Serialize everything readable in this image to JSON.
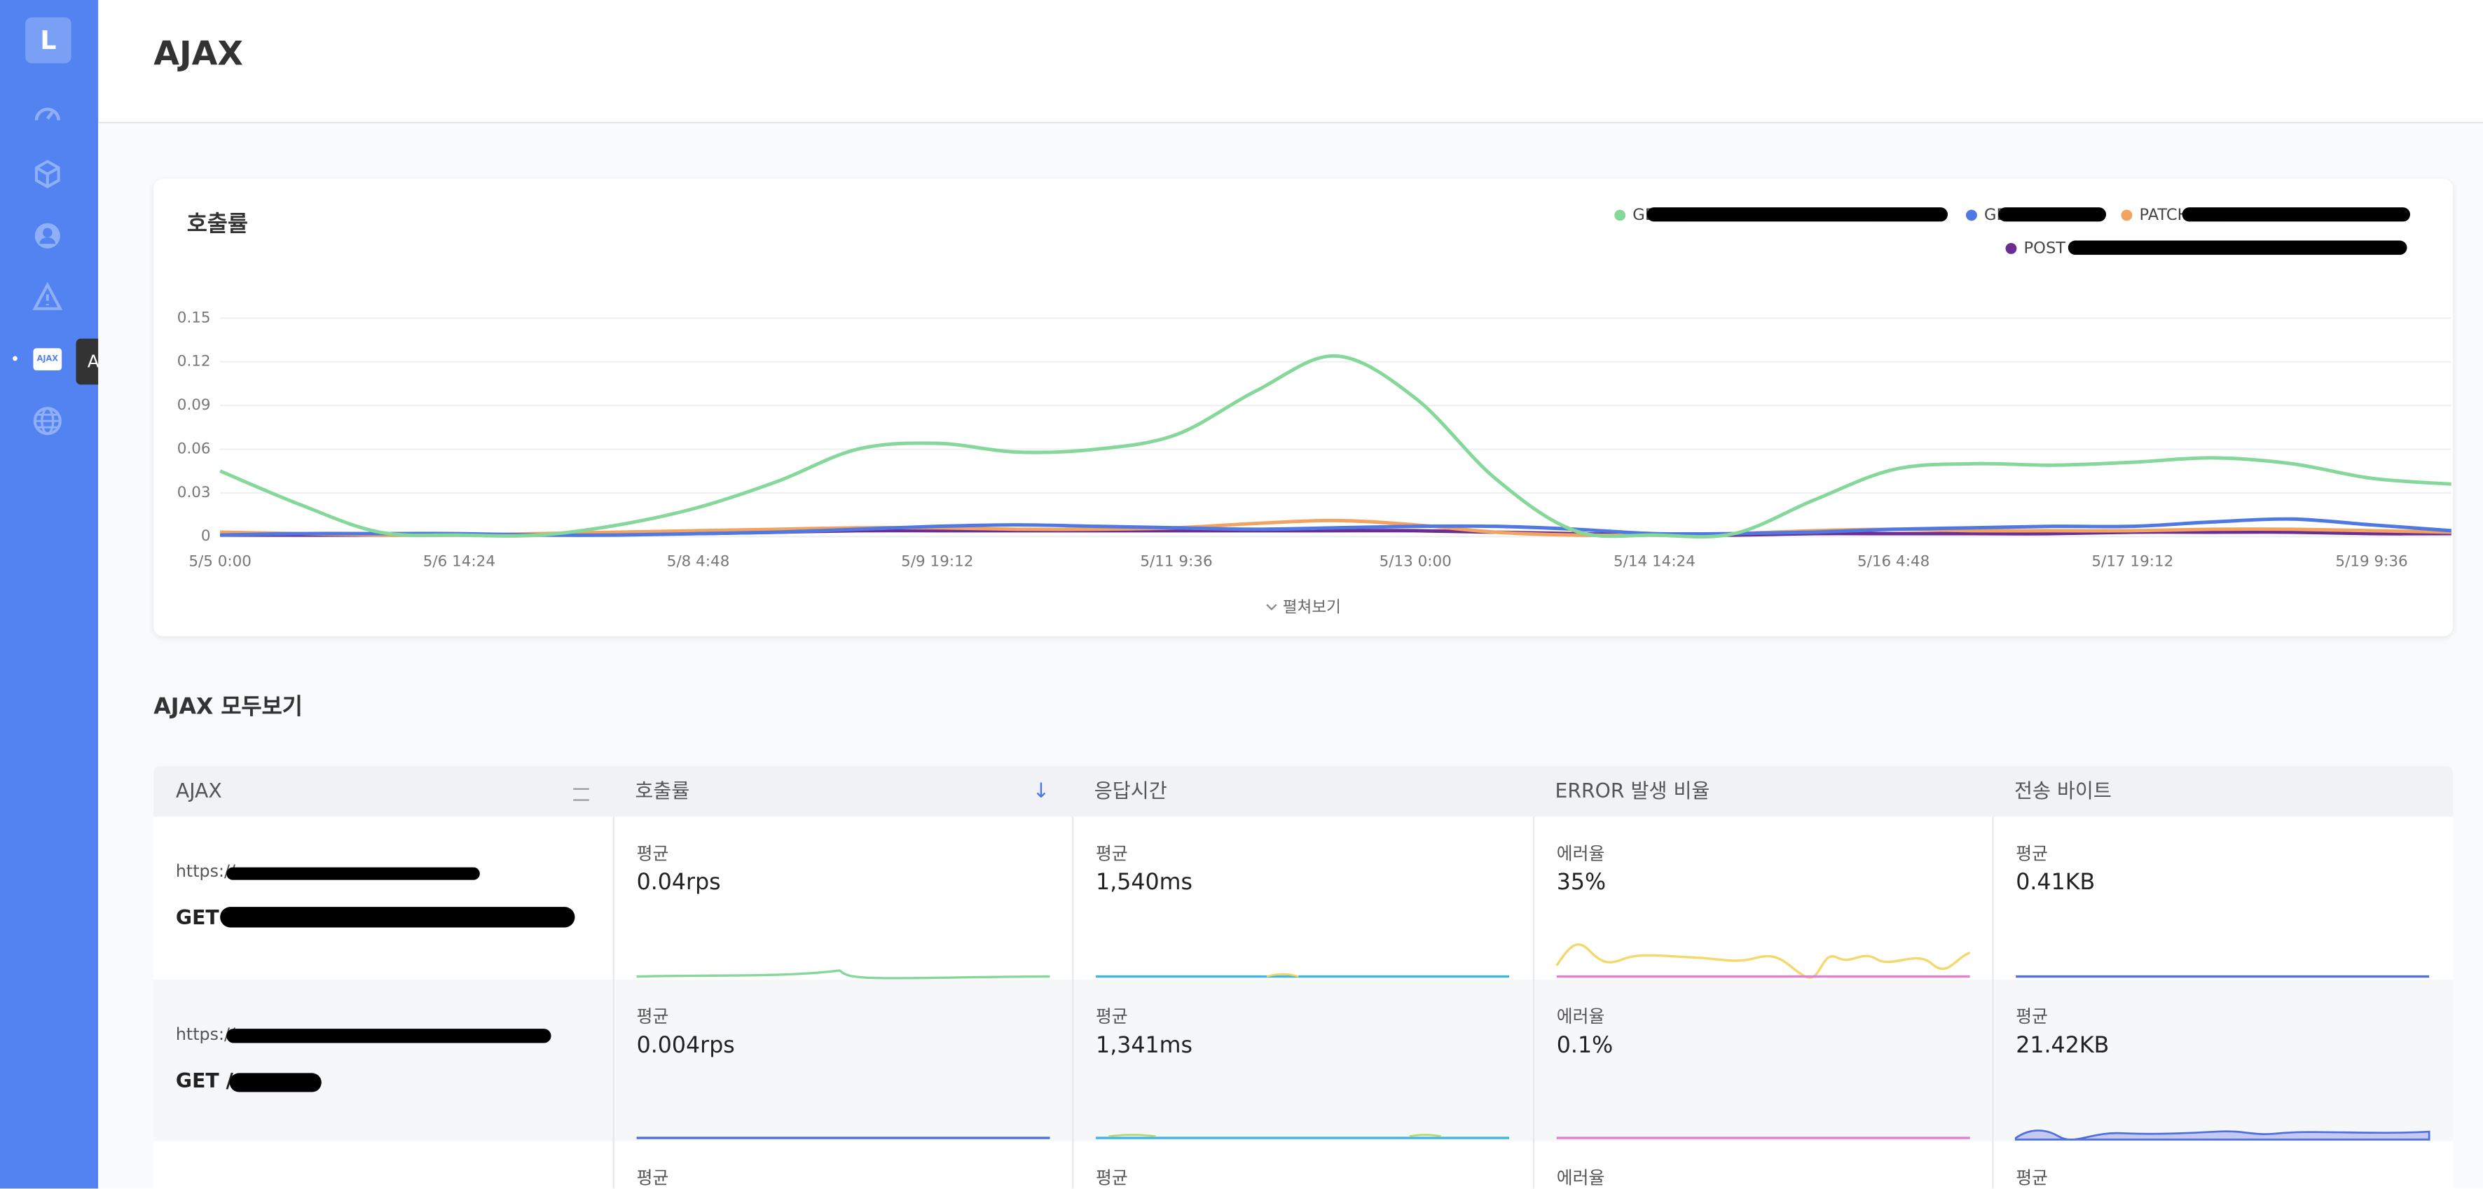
{
  "sidebar": {
    "logo": "L",
    "tooltip": "AJAX",
    "active_icon": "AJAX"
  },
  "header": {
    "title": "AJAX"
  },
  "chart_card": {
    "title": "호출률",
    "expand": "펼쳐보기"
  },
  "chart_data": {
    "type": "line",
    "categories": [
      "5/5 0:00",
      null,
      null,
      "5/6 14:24",
      null,
      null,
      "5/8 4:48",
      null,
      null,
      "5/9 19:12",
      null,
      null,
      "5/11 9:36",
      null,
      null,
      "5/13 0:00",
      null,
      null,
      "5/14 14:24",
      null,
      null,
      "5/16 4:48",
      null,
      null,
      "5/17 19:12",
      null,
      null,
      "5/19 9:36",
      null
    ],
    "ylim": [
      0,
      0.15
    ],
    "yticks": [
      0,
      0.03,
      0.06,
      0.09,
      0.12,
      0.15
    ],
    "grid": true,
    "legend": "top-right",
    "series": [
      {
        "name": "GET",
        "color": "#86d89a",
        "values": [
          0.045,
          0.022,
          0.003,
          0.001,
          0.001,
          0.008,
          0.02,
          0.038,
          0.06,
          0.064,
          0.058,
          0.06,
          0.07,
          0.1,
          0.124,
          0.095,
          0.04,
          0.004,
          0.001,
          0.002,
          0.025,
          0.046,
          0.05,
          0.049,
          0.051,
          0.054,
          0.05,
          0.04,
          0.036
        ]
      },
      {
        "name": "GET",
        "color": "#4f78e3",
        "values": [
          0.001,
          0.002,
          0.002,
          0.002,
          0.001,
          0.001,
          0.002,
          0.003,
          0.005,
          0.007,
          0.008,
          0.007,
          0.006,
          0.005,
          0.006,
          0.007,
          0.007,
          0.005,
          0.002,
          0.002,
          0.003,
          0.005,
          0.006,
          0.007,
          0.007,
          0.01,
          0.012,
          0.008,
          0.004
        ]
      },
      {
        "name": "PATCH",
        "color": "#f2a261",
        "values": [
          0.003,
          0.002,
          0.001,
          0.001,
          0.002,
          0.003,
          0.004,
          0.005,
          0.006,
          0.006,
          0.005,
          0.005,
          0.006,
          0.009,
          0.011,
          0.008,
          0.003,
          0.001,
          0.001,
          0.002,
          0.004,
          0.005,
          0.004,
          0.004,
          0.004,
          0.005,
          0.005,
          0.004,
          0.003
        ]
      },
      {
        "name": "POST",
        "color": "#6b2d92",
        "values": [
          0.001,
          0.001,
          0.001,
          0.001,
          0.001,
          0.002,
          0.002,
          0.003,
          0.004,
          0.004,
          0.004,
          0.004,
          0.004,
          0.004,
          0.004,
          0.004,
          0.003,
          0.002,
          0.001,
          0.001,
          0.002,
          0.002,
          0.002,
          0.002,
          0.003,
          0.003,
          0.003,
          0.002,
          0.002
        ]
      }
    ]
  },
  "section_title": "AJAX 모두보기",
  "table": {
    "columns": [
      "AJAX",
      "호출률",
      "응답시간",
      "ERROR 발생 비율",
      "전송 바이트"
    ],
    "rows": [
      {
        "url": "https://",
        "method": "GET /",
        "cells": [
          {
            "label": "평균",
            "value": "0.04rps"
          },
          {
            "label": "평균",
            "value": "1,540ms"
          },
          {
            "label": "에러율",
            "value": "35%"
          },
          {
            "label": "평균",
            "value": "0.41KB"
          }
        ]
      },
      {
        "url": "https://",
        "method": "GET /",
        "cells": [
          {
            "label": "평균",
            "value": "0.004rps"
          },
          {
            "label": "평균",
            "value": "1,341ms"
          },
          {
            "label": "에러율",
            "value": "0.1%"
          },
          {
            "label": "평균",
            "value": "21.42KB"
          }
        ]
      },
      {
        "cells": [
          {
            "label": "평균"
          },
          {
            "label": "평균"
          },
          {
            "label": "에러율"
          },
          {
            "label": "평균"
          }
        ]
      }
    ]
  }
}
